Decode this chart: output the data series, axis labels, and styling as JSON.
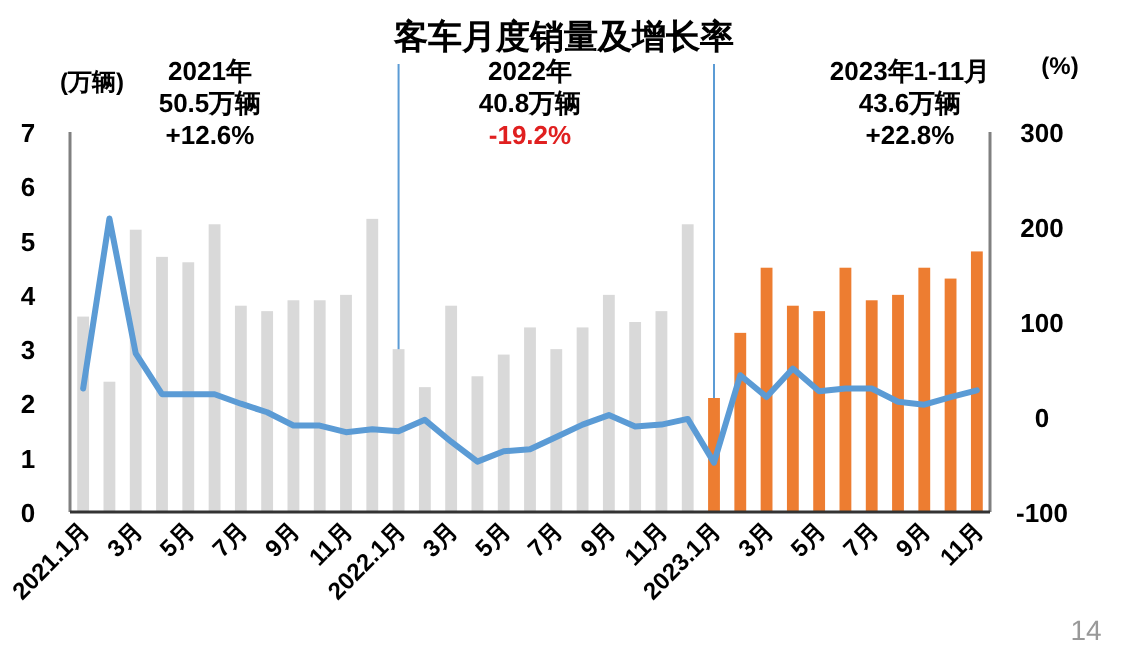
{
  "chart_data": {
    "type": "bar",
    "title": "客车月度销量及增长率",
    "ylabel": "(万辆)",
    "y2label": "(%)",
    "categories": [
      "2021.1月",
      null,
      "3月",
      null,
      "5月",
      null,
      "7月",
      null,
      "9月",
      null,
      "11月",
      null,
      "2022.1月",
      null,
      "3月",
      null,
      "5月",
      null,
      "7月",
      null,
      "9月",
      null,
      "11月",
      null,
      "2023.1月",
      null,
      "3月",
      null,
      "5月",
      null,
      "7月",
      null,
      "9月",
      null,
      "11月"
    ],
    "series": [
      {
        "colors": [
          "#d9d9d9",
          "#d9d9d9",
          "#d9d9d9",
          "#d9d9d9",
          "#d9d9d9",
          "#d9d9d9",
          "#d9d9d9",
          "#d9d9d9",
          "#d9d9d9",
          "#d9d9d9",
          "#d9d9d9",
          "#d9d9d9",
          "#d9d9d9",
          "#d9d9d9",
          "#d9d9d9",
          "#d9d9d9",
          "#d9d9d9",
          "#d9d9d9",
          "#d9d9d9",
          "#d9d9d9",
          "#d9d9d9",
          "#d9d9d9",
          "#d9d9d9",
          "#d9d9d9",
          "#ed7d31",
          "#ed7d31",
          "#ed7d31",
          "#ed7d31",
          "#ed7d31",
          "#ed7d31",
          "#ed7d31",
          "#ed7d31",
          "#ed7d31",
          "#ed7d31",
          "#ed7d31"
        ],
        "values": [
          3.6,
          2.4,
          5.2,
          4.7,
          4.6,
          5.3,
          3.8,
          3.7,
          3.9,
          3.9,
          4.0,
          5.4,
          3.0,
          2.3,
          3.8,
          2.5,
          2.9,
          3.4,
          3.0,
          3.4,
          4.0,
          3.5,
          3.7,
          5.3,
          2.1,
          3.3,
          4.5,
          3.8,
          3.7,
          4.5,
          3.9,
          4.0,
          4.5,
          4.3,
          4.8
        ]
      },
      {
        "type": "line",
        "axis": "y2",
        "color": "#5b9bd5",
        "values": [
          30,
          209,
          67,
          24,
          24,
          24,
          14,
          5,
          -9,
          -9,
          -16,
          -13,
          -15,
          -3,
          -26,
          -47,
          -36,
          -34,
          -21,
          -8,
          2,
          -10,
          -8,
          -2,
          -48,
          44,
          21,
          51,
          27,
          30,
          30,
          16,
          13,
          21,
          28
        ]
      }
    ],
    "ylim": [
      0,
      7
    ],
    "yticks": [
      0,
      1,
      2,
      3,
      4,
      5,
      6,
      7
    ],
    "y2lim": [
      -100,
      300
    ],
    "y2ticks": [
      -100,
      0,
      100,
      200,
      300
    ],
    "ref_lines": [
      {
        "axis": "x",
        "value": "2022.1月",
        "color": "#5b9bd5"
      },
      {
        "axis": "x",
        "value": "2023.1月",
        "color": "#5b9bd5"
      }
    ],
    "annotations": [
      "2021年",
      "50.5万辆",
      "+12.6%",
      "2022年",
      "40.8万辆",
      "-19.2%",
      "2023年1-11月",
      "43.6万辆",
      "+22.8%",
      "14"
    ],
    "grid": false,
    "marker": "none",
    "line_style": "solid"
  }
}
